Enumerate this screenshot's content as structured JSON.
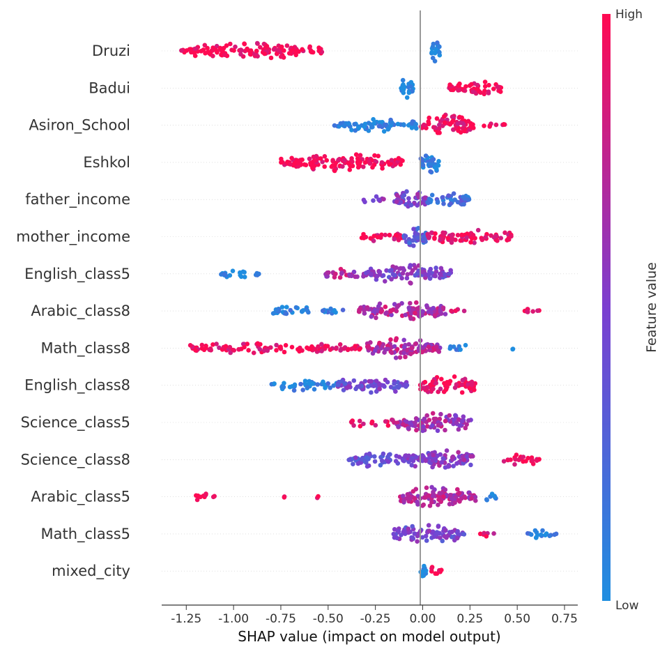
{
  "chart_data": {
    "type": "scatter",
    "subtype": "shap-beeswarm",
    "title": "",
    "xlabel": "SHAP value (impact on model output)",
    "ylabel": "",
    "xlim": [
      -1.38,
      0.82
    ],
    "xticks": [
      "-1.25",
      "-1.00",
      "-0.75",
      "-0.50",
      "-0.25",
      "0.00",
      "0.25",
      "0.50",
      "0.75"
    ],
    "colorbar": {
      "label": "Feature value",
      "high": "High",
      "low": "Low",
      "low_color": "#1f8ee0",
      "mid_color": "#7b3fd0",
      "high_color": "#ff0a52"
    },
    "grid": false,
    "features": [
      {
        "name": "Druzi",
        "segments": [
          {
            "from": -1.28,
            "to": -0.52,
            "level": 1.0,
            "density": 0.7
          },
          {
            "from": 0.04,
            "to": 0.09,
            "level": 0.0,
            "density": 1.0
          }
        ]
      },
      {
        "name": "Badui",
        "segments": [
          {
            "from": -0.12,
            "to": -0.05,
            "level": 0.0,
            "density": 1.0
          },
          {
            "from": 0.14,
            "to": 0.42,
            "level": 1.0,
            "density": 0.7
          }
        ]
      },
      {
        "name": "Asiron_School",
        "segments": [
          {
            "from": -0.47,
            "to": -0.02,
            "level": 0.05,
            "density": 0.6
          },
          {
            "from": -0.02,
            "to": 0.27,
            "level": 0.95,
            "density": 1.0
          },
          {
            "from": 0.3,
            "to": 0.44,
            "level": 1.0,
            "density": 0.2
          }
        ]
      },
      {
        "name": "Eshkol",
        "segments": [
          {
            "from": -0.76,
            "to": -0.1,
            "level": 1.0,
            "density": 0.8
          },
          {
            "from": -0.01,
            "to": 0.1,
            "level": 0.05,
            "density": 1.0
          }
        ]
      },
      {
        "name": "father_income",
        "segments": [
          {
            "from": -0.33,
            "to": -0.2,
            "level": 0.5,
            "density": 0.2
          },
          {
            "from": -0.15,
            "to": 0.02,
            "level": 0.5,
            "density": 0.9
          },
          {
            "from": 0.02,
            "to": 0.25,
            "level": 0.2,
            "density": 0.7
          }
        ]
      },
      {
        "name": "mother_income",
        "segments": [
          {
            "from": -0.33,
            "to": -0.1,
            "level": 0.95,
            "density": 0.4
          },
          {
            "from": -0.1,
            "to": 0.02,
            "level": 0.3,
            "density": 1.0
          },
          {
            "from": 0.02,
            "to": 0.48,
            "level": 0.95,
            "density": 0.6
          }
        ]
      },
      {
        "name": "English_class5",
        "segments": [
          {
            "from": -1.08,
            "to": -0.84,
            "level": 0.0,
            "density": 0.3
          },
          {
            "from": -0.52,
            "to": -0.3,
            "level": 0.7,
            "density": 0.4
          },
          {
            "from": -0.3,
            "to": 0.15,
            "level": 0.5,
            "density": 0.9
          }
        ]
      },
      {
        "name": "Arabic_class8",
        "segments": [
          {
            "from": -0.8,
            "to": -0.6,
            "level": 0.05,
            "density": 0.5
          },
          {
            "from": -0.54,
            "to": -0.38,
            "level": 0.1,
            "density": 0.25
          },
          {
            "from": -0.34,
            "to": 0.12,
            "level": 0.7,
            "density": 0.9
          },
          {
            "from": 0.15,
            "to": 0.22,
            "level": 0.9,
            "density": 0.2
          },
          {
            "from": 0.54,
            "to": 0.62,
            "level": 1.0,
            "density": 0.3
          }
        ]
      },
      {
        "name": "Math_class8",
        "segments": [
          {
            "from": -1.25,
            "to": -0.3,
            "level": 0.95,
            "density": 0.45
          },
          {
            "from": -0.3,
            "to": 0.1,
            "level": 0.7,
            "density": 1.0
          },
          {
            "from": 0.12,
            "to": 0.25,
            "level": 0.05,
            "density": 0.25
          },
          {
            "from": 0.47,
            "to": 0.48,
            "level": 0.0,
            "density": 0.1
          }
        ]
      },
      {
        "name": "English_class8",
        "segments": [
          {
            "from": -0.8,
            "to": -0.45,
            "level": 0.05,
            "density": 0.45
          },
          {
            "from": -0.45,
            "to": -0.08,
            "level": 0.45,
            "density": 0.8
          },
          {
            "from": -0.02,
            "to": 0.28,
            "level": 0.95,
            "density": 0.9
          }
        ]
      },
      {
        "name": "Science_class5",
        "segments": [
          {
            "from": -0.38,
            "to": -0.3,
            "level": 0.95,
            "density": 0.3
          },
          {
            "from": -0.27,
            "to": -0.15,
            "level": 0.9,
            "density": 0.25
          },
          {
            "from": -0.14,
            "to": 0.26,
            "level": 0.65,
            "density": 0.9
          }
        ]
      },
      {
        "name": "Science_class8",
        "segments": [
          {
            "from": -0.39,
            "to": -0.1,
            "level": 0.4,
            "density": 0.7
          },
          {
            "from": -0.1,
            "to": 0.27,
            "level": 0.55,
            "density": 1.0
          },
          {
            "from": 0.42,
            "to": 0.62,
            "level": 1.0,
            "density": 0.45
          }
        ]
      },
      {
        "name": "Arabic_class5",
        "segments": [
          {
            "from": -1.2,
            "to": -1.1,
            "level": 1.0,
            "density": 0.4
          },
          {
            "from": -0.74,
            "to": -0.73,
            "level": 1.0,
            "density": 0.1
          },
          {
            "from": -0.56,
            "to": -0.55,
            "level": 1.0,
            "density": 0.1
          },
          {
            "from": -0.12,
            "to": 0.28,
            "level": 0.7,
            "density": 1.0
          },
          {
            "from": 0.32,
            "to": 0.4,
            "level": 0.05,
            "density": 0.3
          }
        ]
      },
      {
        "name": "Math_class5",
        "segments": [
          {
            "from": -0.16,
            "to": 0.22,
            "level": 0.45,
            "density": 0.85
          },
          {
            "from": 0.3,
            "to": 0.4,
            "level": 0.9,
            "density": 0.2
          },
          {
            "from": 0.54,
            "to": 0.72,
            "level": 0.05,
            "density": 0.35
          }
        ]
      },
      {
        "name": "mixed_city",
        "segments": [
          {
            "from": -0.01,
            "to": 0.02,
            "level": 0.0,
            "density": 1.0
          },
          {
            "from": 0.04,
            "to": 0.1,
            "level": 1.0,
            "density": 0.4
          }
        ]
      }
    ]
  }
}
